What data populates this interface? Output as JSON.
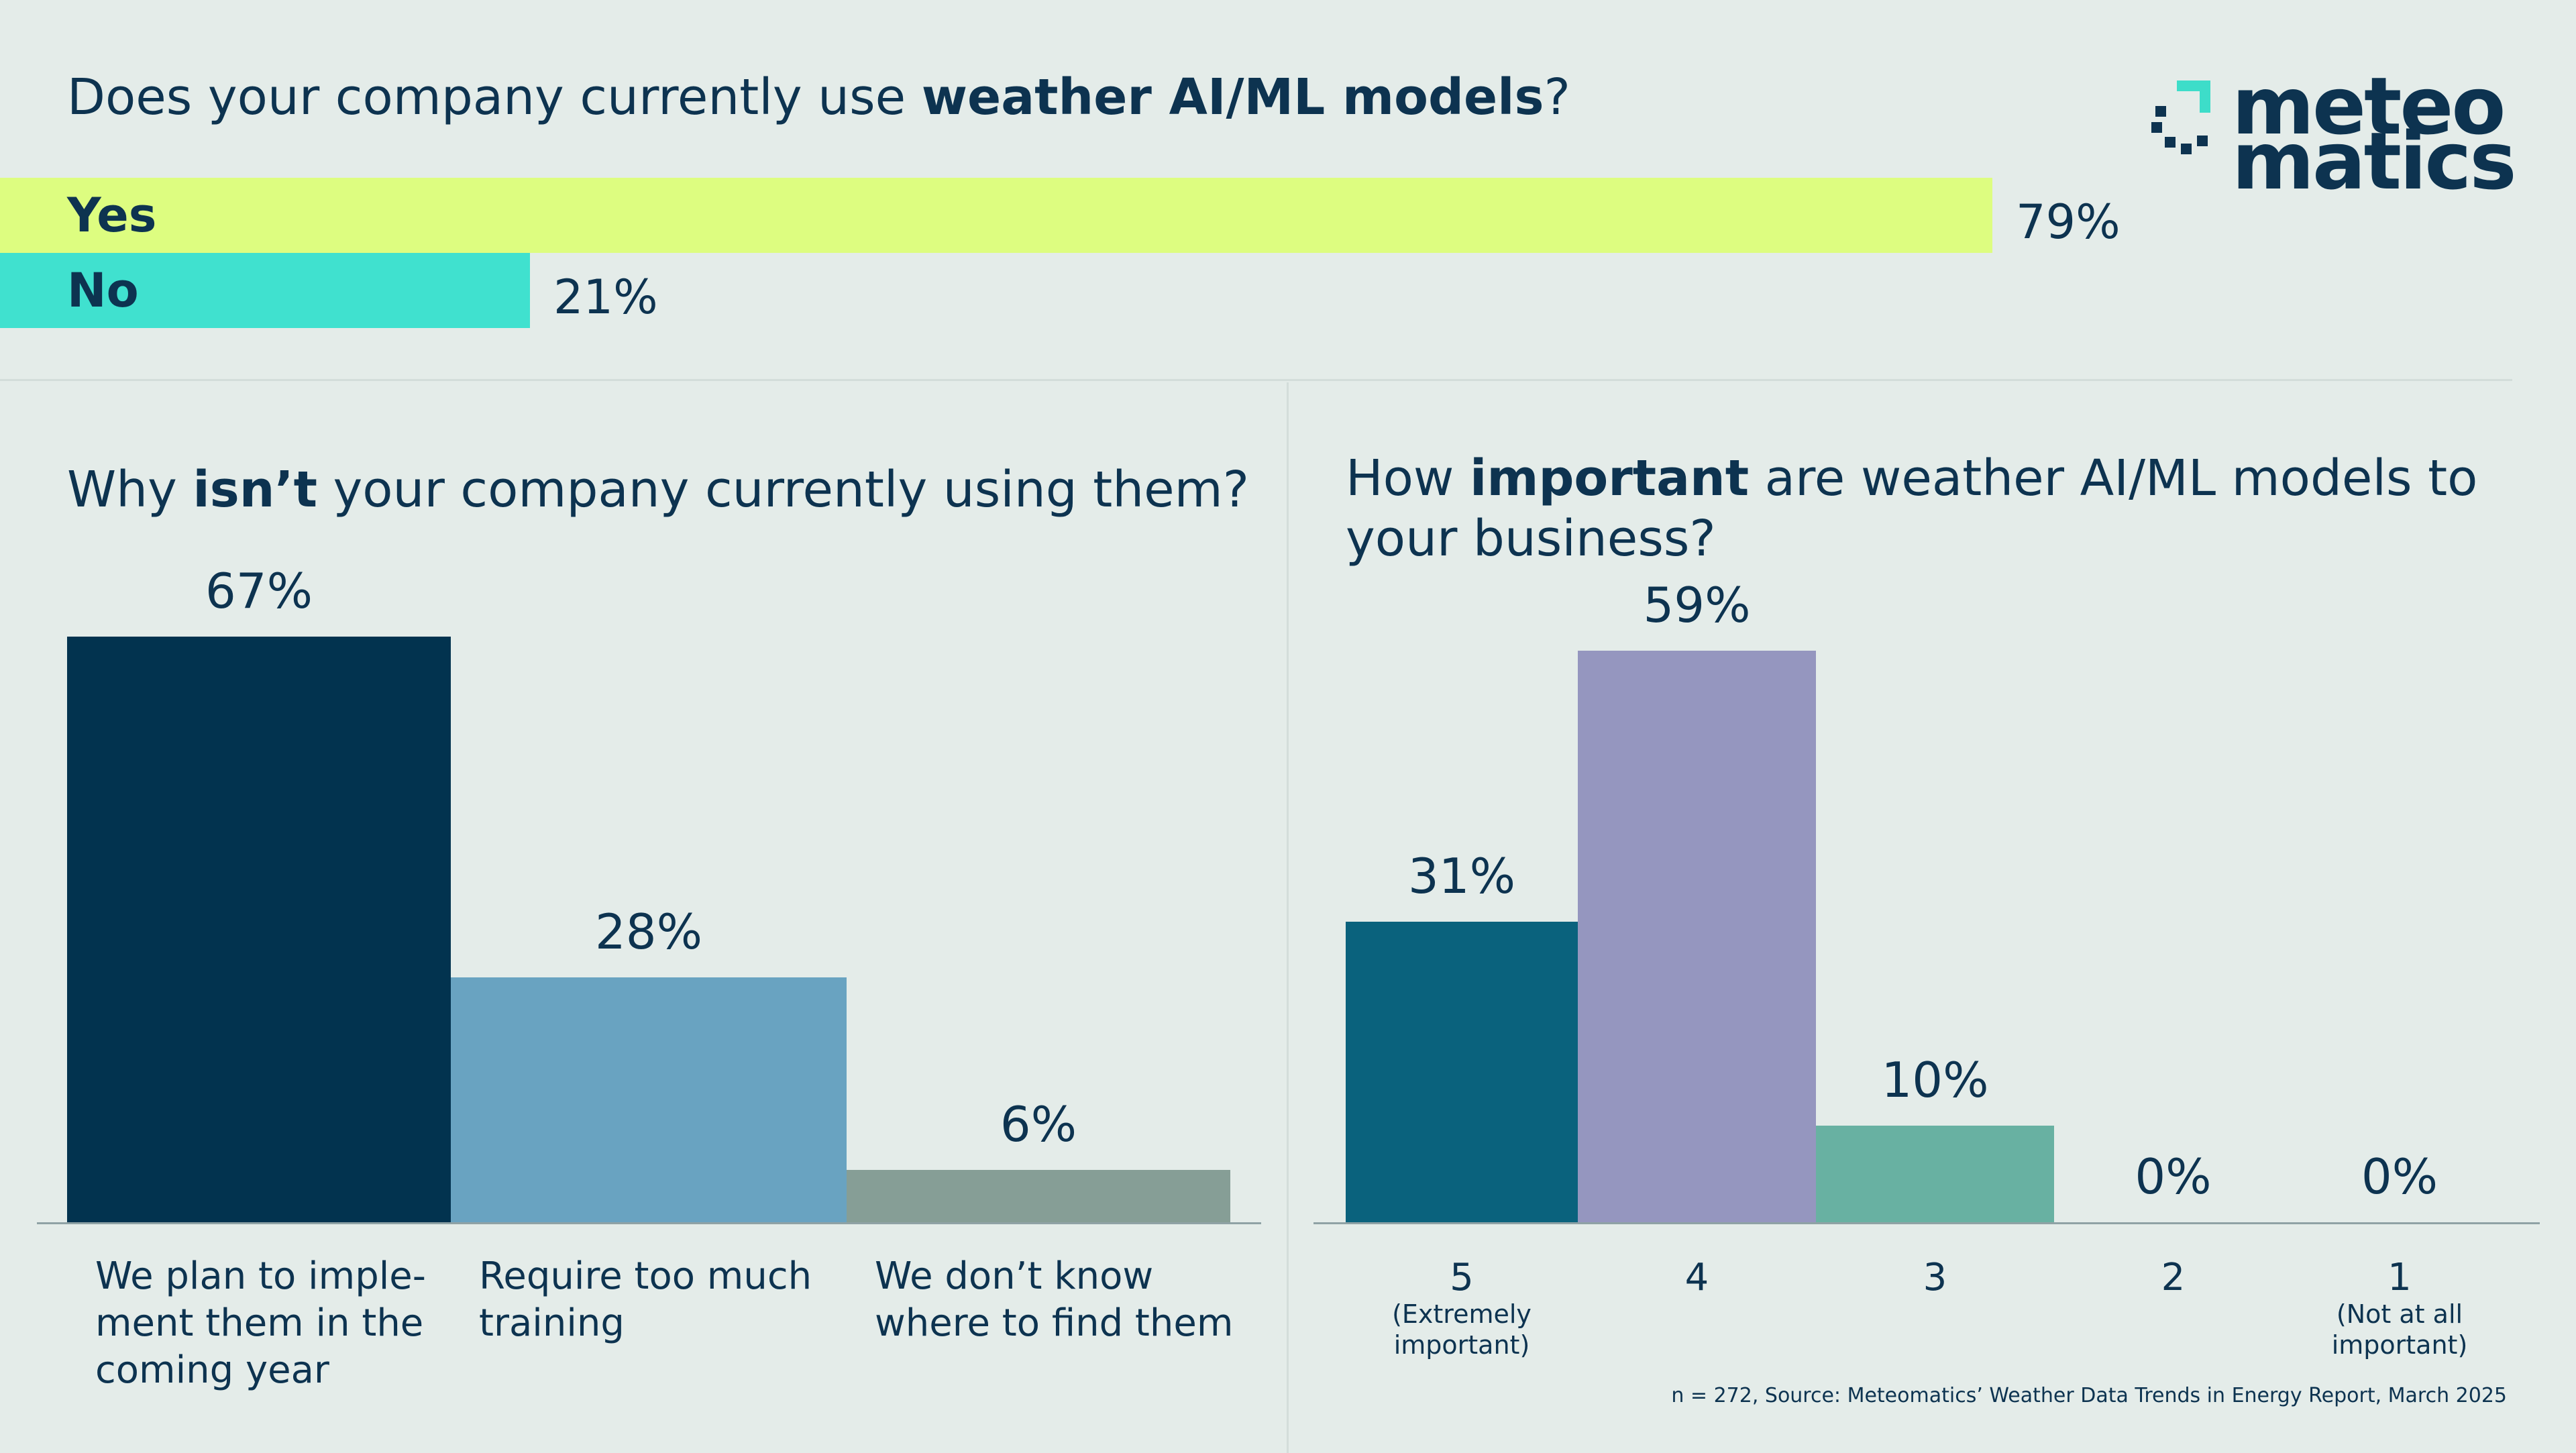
{
  "logo": {
    "line1": "meteo",
    "line2": "matics",
    "mark_colors": [
      "#3dddc9",
      "#0d3350"
    ]
  },
  "footnote": "n = 272, Source: Meteomatics’ Weather Data Trends in Energy Report, March 2025",
  "chart_data": [
    {
      "type": "bar",
      "orientation": "horizontal",
      "title_parts": [
        "Does your company currently use ",
        "weather AI/ML models",
        "?"
      ],
      "categories": [
        "Yes",
        "No"
      ],
      "values": [
        79,
        21
      ],
      "value_labels": [
        "79%",
        "21%"
      ],
      "colors": [
        "#ddfd80",
        "#40e1cf"
      ],
      "xlim": [
        0,
        100
      ]
    },
    {
      "type": "bar",
      "title_parts": [
        "Why ",
        "isn’t",
        " your company currently using them?"
      ],
      "categories": [
        "We plan to imple-\nment them in the\ncoming year",
        "Require too much\ntraining",
        "We don’t know\nwhere to find them"
      ],
      "values": [
        67,
        28,
        6
      ],
      "value_labels": [
        "67%",
        "28%",
        "6%"
      ],
      "colors": [
        "#02334f",
        "#69a3c1",
        "#869e96"
      ],
      "ylim": [
        0,
        67
      ]
    },
    {
      "type": "bar",
      "title_parts": [
        "How ",
        "important",
        " are weather AI/ML models to",
        "your business?"
      ],
      "categories": [
        "5",
        "4",
        "3",
        "2",
        "1"
      ],
      "category_notes": [
        "(Extremely\nimportant)",
        "",
        "",
        "",
        "(Not at all\nimportant)"
      ],
      "values": [
        31,
        59,
        10,
        0,
        0
      ],
      "value_labels": [
        "31%",
        "59%",
        "10%",
        "0%",
        "0%"
      ],
      "colors": [
        "#0a627d",
        "#9596bf",
        "#68b1a2",
        "#68b1a2",
        "#68b1a2"
      ],
      "ylim": [
        0,
        59
      ]
    }
  ]
}
